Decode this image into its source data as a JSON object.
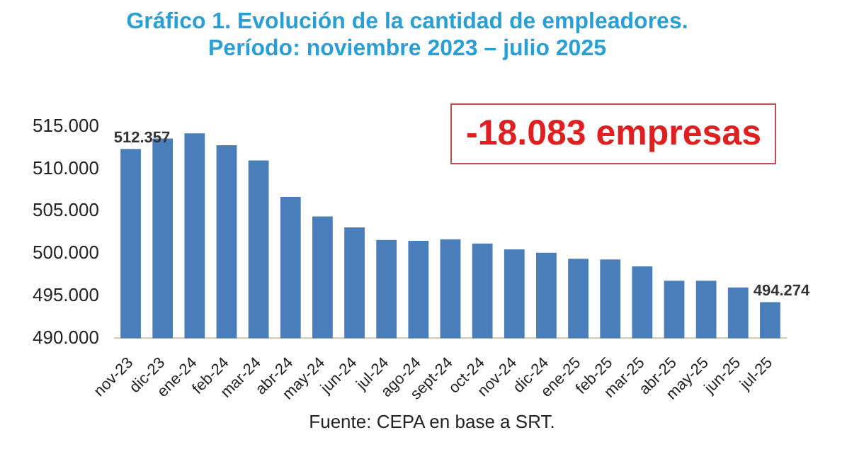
{
  "chart_data": {
    "type": "bar",
    "title": "Gráfico 1. Evolución de la cantidad de empleadores.",
    "subtitle": "Período: noviembre 2023 – julio 2025",
    "categories": [
      "nov-23",
      "dic-23",
      "ene-24",
      "feb-24",
      "mar-24",
      "abr-24",
      "may-24",
      "jun-24",
      "jul-24",
      "ago-24",
      "sept-24",
      "oct-24",
      "nov-24",
      "dic-24",
      "ene-25",
      "feb-25",
      "mar-25",
      "abr-25",
      "may-25",
      "jun-25",
      "jul-25"
    ],
    "values": [
      512357,
      513600,
      514200,
      512800,
      511000,
      506700,
      504400,
      503100,
      501600,
      501500,
      501700,
      501200,
      500500,
      500100,
      499400,
      499300,
      498500,
      496800,
      496800,
      496000,
      494274
    ],
    "value_labels": [
      "512.357",
      null,
      null,
      null,
      null,
      null,
      null,
      null,
      null,
      null,
      null,
      null,
      null,
      null,
      null,
      null,
      null,
      null,
      null,
      null,
      "494.274"
    ],
    "color": "#4a7ebb",
    "ylim": [
      490000,
      515000
    ],
    "yticks": [
      {
        "value": 490000,
        "label": "490.000"
      },
      {
        "value": 495000,
        "label": "495.000"
      },
      {
        "value": 500000,
        "label": "500.000"
      },
      {
        "value": 505000,
        "label": "505.000"
      },
      {
        "value": 510000,
        "label": "510.000"
      },
      {
        "value": 515000,
        "label": "515.000"
      }
    ],
    "grid": false,
    "legend": false,
    "annotations": [
      "-18.083 empresas",
      "Fuente: CEPA en base a SRT."
    ]
  }
}
